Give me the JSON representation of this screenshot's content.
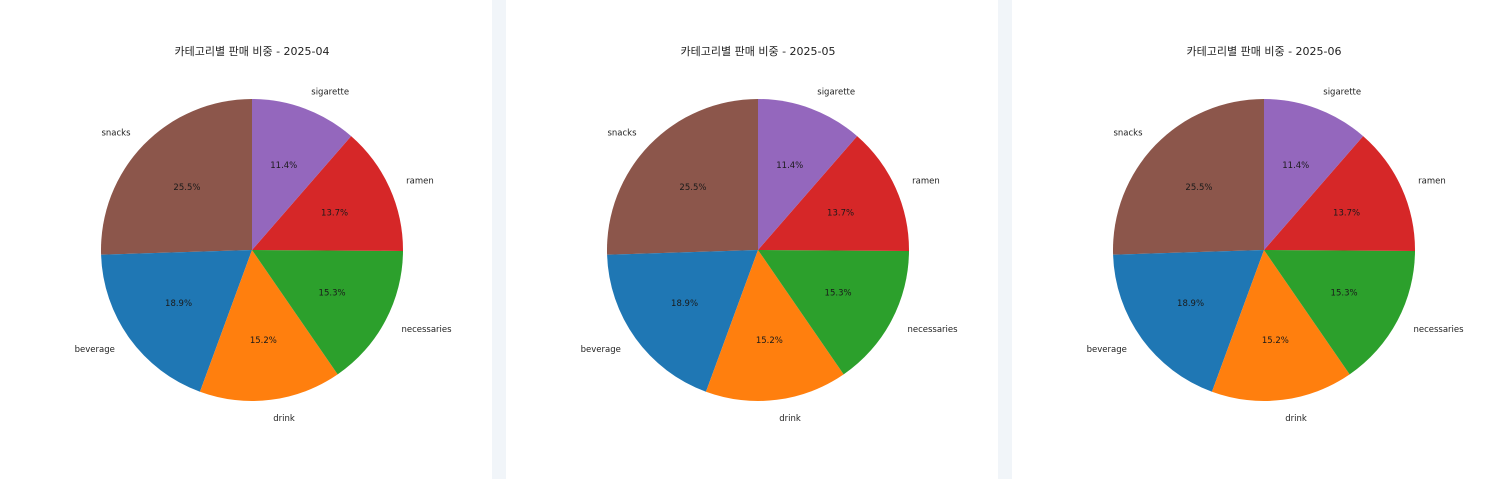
{
  "chart_data": [
    {
      "type": "pie",
      "title": "카테고리별 판매 비중 - 2025-04",
      "start_angle_deg": 90,
      "direction": "counterclockwise",
      "slices": [
        {
          "label": "snacks",
          "value": 25.5,
          "pct_label": "25.5%",
          "color": "#8c564b"
        },
        {
          "label": "beverage",
          "value": 18.9,
          "pct_label": "18.9%",
          "color": "#1f77b4"
        },
        {
          "label": "drink",
          "value": 15.2,
          "pct_label": "15.2%",
          "color": "#ff7f0e"
        },
        {
          "label": "necessaries",
          "value": 15.3,
          "pct_label": "15.3%",
          "color": "#2ca02c"
        },
        {
          "label": "ramen",
          "value": 13.7,
          "pct_label": "13.7%",
          "color": "#d62728"
        },
        {
          "label": "sigarette",
          "value": 11.4,
          "pct_label": "11.4%",
          "color": "#9467bd"
        }
      ]
    },
    {
      "type": "pie",
      "title": "카테고리별 판매 비중 - 2025-05",
      "start_angle_deg": 90,
      "direction": "counterclockwise",
      "slices": [
        {
          "label": "snacks",
          "value": 25.5,
          "pct_label": "25.5%",
          "color": "#8c564b"
        },
        {
          "label": "beverage",
          "value": 18.9,
          "pct_label": "18.9%",
          "color": "#1f77b4"
        },
        {
          "label": "drink",
          "value": 15.2,
          "pct_label": "15.2%",
          "color": "#ff7f0e"
        },
        {
          "label": "necessaries",
          "value": 15.3,
          "pct_label": "15.3%",
          "color": "#2ca02c"
        },
        {
          "label": "ramen",
          "value": 13.7,
          "pct_label": "13.7%",
          "color": "#d62728"
        },
        {
          "label": "sigarette",
          "value": 11.4,
          "pct_label": "11.4%",
          "color": "#9467bd"
        }
      ]
    },
    {
      "type": "pie",
      "title": "카테고리별 판매 비중 - 2025-06",
      "start_angle_deg": 90,
      "direction": "counterclockwise",
      "slices": [
        {
          "label": "snacks",
          "value": 25.5,
          "pct_label": "25.5%",
          "color": "#8c564b"
        },
        {
          "label": "beverage",
          "value": 18.9,
          "pct_label": "18.9%",
          "color": "#1f77b4"
        },
        {
          "label": "drink",
          "value": 15.2,
          "pct_label": "15.2%",
          "color": "#ff7f0e"
        },
        {
          "label": "necessaries",
          "value": 15.3,
          "pct_label": "15.3%",
          "color": "#2ca02c"
        },
        {
          "label": "ramen",
          "value": 13.7,
          "pct_label": "13.7%",
          "color": "#d62728"
        },
        {
          "label": "sigarette",
          "value": 11.4,
          "pct_label": "11.4%",
          "color": "#9467bd"
        }
      ]
    }
  ]
}
